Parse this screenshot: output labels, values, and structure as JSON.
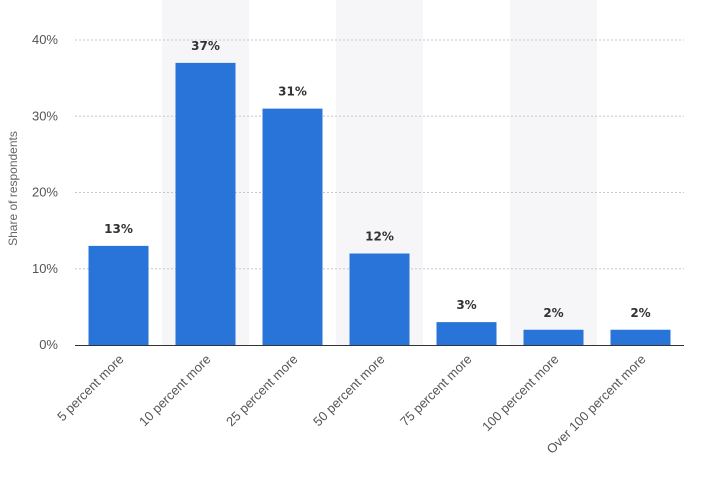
{
  "chart_data": {
    "type": "bar",
    "categories": [
      "5 percent more",
      "10 percent more",
      "25 percent more",
      "50 percent more",
      "75 percent more",
      "100 percent more",
      "Over 100 percent more"
    ],
    "values": [
      13,
      37,
      31,
      12,
      3,
      2,
      2
    ],
    "value_labels": [
      "13%",
      "37%",
      "31%",
      "12%",
      "3%",
      "2%",
      "2%"
    ],
    "title": "",
    "xlabel": "",
    "ylabel": "Share of respondents",
    "ylim": [
      0,
      40
    ],
    "yticks": [
      0,
      10,
      20,
      30,
      40
    ],
    "ytick_labels": [
      "0%",
      "10%",
      "20%",
      "30%",
      "40%"
    ],
    "grid": true,
    "legend": "none",
    "bar_color": "#2874d8",
    "band_color": "#f6f6f8"
  }
}
